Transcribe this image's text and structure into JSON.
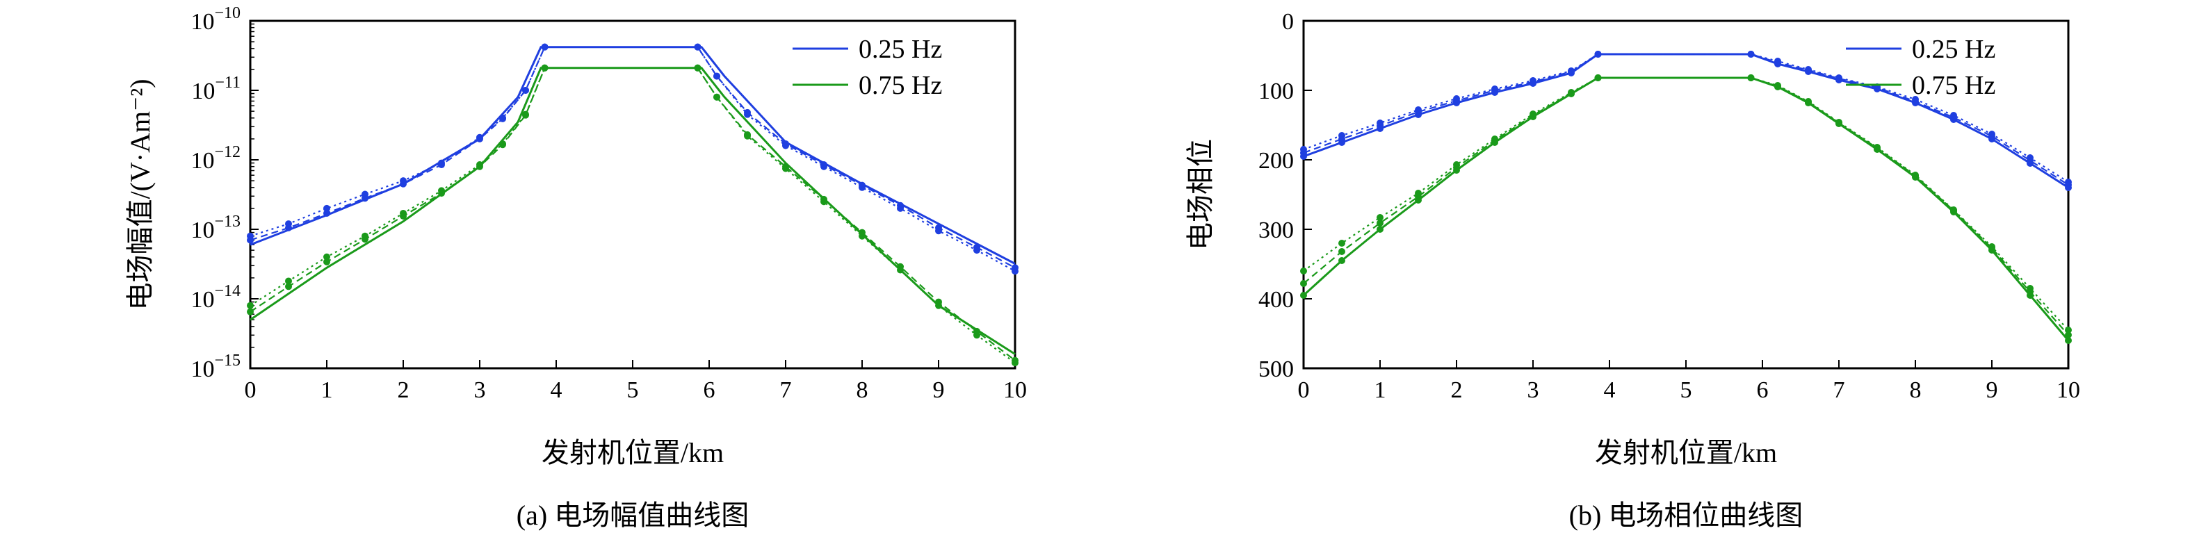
{
  "chart_data": [
    {
      "id": "a",
      "type": "line",
      "caption": "(a) 电场幅值曲线图",
      "xlabel": "发射机位置/km",
      "ylabel": "电场幅值/(V·Am⁻²)",
      "xlim": [
        0,
        10
      ],
      "ylim": [
        1e-15,
        1e-10
      ],
      "yscale": "log",
      "xticks": [
        "0",
        "1",
        "2",
        "3",
        "4",
        "5",
        "6",
        "7",
        "8",
        "9",
        "10"
      ],
      "yticks": [
        {
          "value": 1e-10,
          "base": "10",
          "exp": "−10"
        },
        {
          "value": 1e-11,
          "base": "10",
          "exp": "−11"
        },
        {
          "value": 1e-12,
          "base": "10",
          "exp": "−12"
        },
        {
          "value": 1e-13,
          "base": "10",
          "exp": "−13"
        },
        {
          "value": 1e-14,
          "base": "10",
          "exp": "−14"
        },
        {
          "value": 1e-15,
          "base": "10",
          "exp": "−15"
        }
      ],
      "legend_position": "top-right",
      "series": [
        {
          "name": "0.25 Hz",
          "color": "#1f3fe0",
          "style": "solid",
          "markers": false,
          "x": [
            0,
            1,
            2,
            3,
            3.5,
            3.8,
            5.9,
            6.2,
            7,
            8,
            9,
            10
          ],
          "y": [
            6e-14,
            1.6e-13,
            4.5e-13,
            2e-12,
            8e-12,
            4.2e-11,
            4.2e-11,
            1.6e-11,
            1.8e-12,
            4.5e-13,
            1.2e-13,
            3.2e-14
          ]
        },
        {
          "name": "0.75 Hz",
          "color": "#1a9a1a",
          "style": "solid",
          "markers": false,
          "x": [
            0,
            1,
            2,
            3,
            3.5,
            3.8,
            5.9,
            6.2,
            7,
            8,
            9,
            10
          ],
          "y": [
            5e-15,
            2.8e-14,
            1.3e-13,
            8e-13,
            3.5e-12,
            2.1e-11,
            2.1e-11,
            8e-12,
            9e-13,
            8.5e-14,
            8e-15,
            1.6e-15
          ]
        },
        {
          "color": "#1f3fe0",
          "style": "dotted",
          "markers": true,
          "x": [
            0,
            0.5,
            1,
            1.5,
            2,
            2.5,
            3,
            3.3,
            3.6,
            3.85,
            5.85,
            6.1,
            6.5,
            7,
            7.5,
            8,
            8.5,
            9,
            9.5,
            10
          ],
          "y": [
            8e-14,
            1.2e-13,
            2e-13,
            3.2e-13,
            5e-13,
            9e-13,
            2.1e-12,
            4e-12,
            1e-11,
            4.2e-11,
            4.2e-11,
            1.6e-11,
            4.5e-12,
            1.6e-12,
            8e-13,
            4e-13,
            2e-13,
            9.5e-14,
            5e-14,
            2.5e-14
          ]
        },
        {
          "color": "#1f3fe0",
          "style": "dashed",
          "markers": true,
          "x": [
            0,
            0.5,
            1,
            1.5,
            2,
            2.5,
            3,
            3.3,
            3.6,
            3.85,
            5.85,
            6.1,
            6.5,
            7,
            7.5,
            8,
            8.5,
            9,
            9.5,
            10
          ],
          "y": [
            7e-14,
            1.05e-13,
            1.7e-13,
            2.8e-13,
            4.5e-13,
            8.5e-13,
            2e-12,
            3.9e-12,
            1e-11,
            4.2e-11,
            4.2e-11,
            1.6e-11,
            4.8e-12,
            1.7e-12,
            8.5e-13,
            4.3e-13,
            2.2e-13,
            1.05e-13,
            5.5e-14,
            2.8e-14
          ]
        },
        {
          "color": "#1a9a1a",
          "style": "dotted",
          "markers": true,
          "x": [
            0,
            0.5,
            1,
            1.5,
            2,
            2.5,
            3,
            3.3,
            3.6,
            3.85,
            5.85,
            6.1,
            6.5,
            7,
            7.5,
            8,
            8.5,
            9,
            9.5,
            10
          ],
          "y": [
            8e-15,
            1.8e-14,
            4e-14,
            8e-14,
            1.7e-13,
            3.6e-13,
            8.5e-13,
            1.7e-12,
            4.5e-12,
            2.1e-11,
            2.1e-11,
            8e-12,
            2.2e-12,
            7.5e-13,
            2.5e-13,
            8e-14,
            2.6e-14,
            8e-15,
            3e-15,
            1.2e-15
          ]
        },
        {
          "color": "#1a9a1a",
          "style": "dashed",
          "markers": true,
          "x": [
            0,
            0.5,
            1,
            1.5,
            2,
            2.5,
            3,
            3.3,
            3.6,
            3.85,
            5.85,
            6.1,
            6.5,
            7,
            7.5,
            8,
            8.5,
            9,
            9.5,
            10
          ],
          "y": [
            6.5e-15,
            1.5e-14,
            3.4e-14,
            7.2e-14,
            1.55e-13,
            3.3e-13,
            8e-13,
            1.65e-12,
            4.4e-12,
            2.1e-11,
            2.1e-11,
            8e-12,
            2.3e-12,
            8e-13,
            2.7e-13,
            9e-14,
            2.9e-14,
            9e-15,
            3.4e-15,
            1.3e-15
          ]
        }
      ]
    },
    {
      "id": "b",
      "type": "line",
      "caption": "(b) 电场相位曲线图",
      "xlabel": "发射机位置/km",
      "ylabel": "电场相位",
      "xlim": [
        0,
        10
      ],
      "ylim": [
        0,
        500
      ],
      "yinverted": true,
      "xticks": [
        "0",
        "1",
        "2",
        "3",
        "4",
        "5",
        "6",
        "7",
        "8",
        "9",
        "10"
      ],
      "yticks": [
        "0",
        "100",
        "200",
        "300",
        "400",
        "500"
      ],
      "legend_position": "top-right",
      "series": [
        {
          "name": "0.25 Hz",
          "color": "#1f3fe0",
          "style": "solid",
          "markers": true,
          "x": [
            0,
            0.5,
            1,
            1.5,
            2,
            2.5,
            3,
            3.5,
            3.85,
            5.85,
            6.2,
            6.6,
            7,
            7.5,
            8,
            8.5,
            9,
            9.5,
            10
          ],
          "y": [
            195,
            175,
            155,
            135,
            118,
            103,
            90,
            75,
            48,
            48,
            62,
            73,
            85,
            98,
            118,
            142,
            170,
            205,
            240
          ]
        },
        {
          "name": "0.75 Hz",
          "color": "#1a9a1a",
          "style": "solid",
          "markers": true,
          "x": [
            0,
            0.5,
            1,
            1.5,
            2,
            2.5,
            3,
            3.5,
            3.85,
            5.85,
            6.2,
            6.6,
            7,
            7.5,
            8,
            8.5,
            9,
            9.5,
            10
          ],
          "y": [
            395,
            345,
            300,
            258,
            215,
            175,
            138,
            105,
            82,
            82,
            95,
            118,
            148,
            185,
            225,
            275,
            330,
            395,
            460
          ]
        },
        {
          "color": "#1f3fe0",
          "style": "dotted",
          "markers": true,
          "x": [
            0,
            0.5,
            1,
            1.5,
            2,
            2.5,
            3,
            3.5,
            3.85,
            5.85,
            6.2,
            6.6,
            7,
            7.5,
            8,
            8.5,
            9,
            9.5,
            10
          ],
          "y": [
            185,
            165,
            147,
            128,
            112,
            98,
            86,
            72,
            48,
            48,
            58,
            70,
            82,
            95,
            113,
            136,
            163,
            197,
            232
          ]
        },
        {
          "color": "#1f3fe0",
          "style": "dashed",
          "markers": true,
          "x": [
            0,
            0.5,
            1,
            1.5,
            2,
            2.5,
            3,
            3.5,
            3.85,
            5.85,
            6.2,
            6.6,
            7,
            7.5,
            8,
            8.5,
            9,
            9.5,
            10
          ],
          "y": [
            190,
            170,
            151,
            131,
            115,
            100,
            88,
            73,
            48,
            48,
            60,
            71,
            83,
            96,
            116,
            139,
            166,
            201,
            236
          ]
        },
        {
          "color": "#1a9a1a",
          "style": "dotted",
          "markers": true,
          "x": [
            0,
            0.5,
            1,
            1.5,
            2,
            2.5,
            3,
            3.5,
            3.85,
            5.85,
            6.2,
            6.6,
            7,
            7.5,
            8,
            8.5,
            9,
            9.5,
            10
          ],
          "y": [
            360,
            320,
            283,
            248,
            207,
            170,
            134,
            103,
            82,
            82,
            93,
            116,
            146,
            182,
            222,
            272,
            325,
            385,
            445
          ]
        },
        {
          "color": "#1a9a1a",
          "style": "dashed",
          "markers": true,
          "x": [
            0,
            0.5,
            1,
            1.5,
            2,
            2.5,
            3,
            3.5,
            3.85,
            5.85,
            6.2,
            6.6,
            7,
            7.5,
            8,
            8.5,
            9,
            9.5,
            10
          ],
          "y": [
            378,
            332,
            291,
            253,
            211,
            172,
            136,
            104,
            82,
            82,
            94,
            117,
            147,
            183,
            223,
            273,
            327,
            390,
            452
          ]
        }
      ]
    }
  ]
}
